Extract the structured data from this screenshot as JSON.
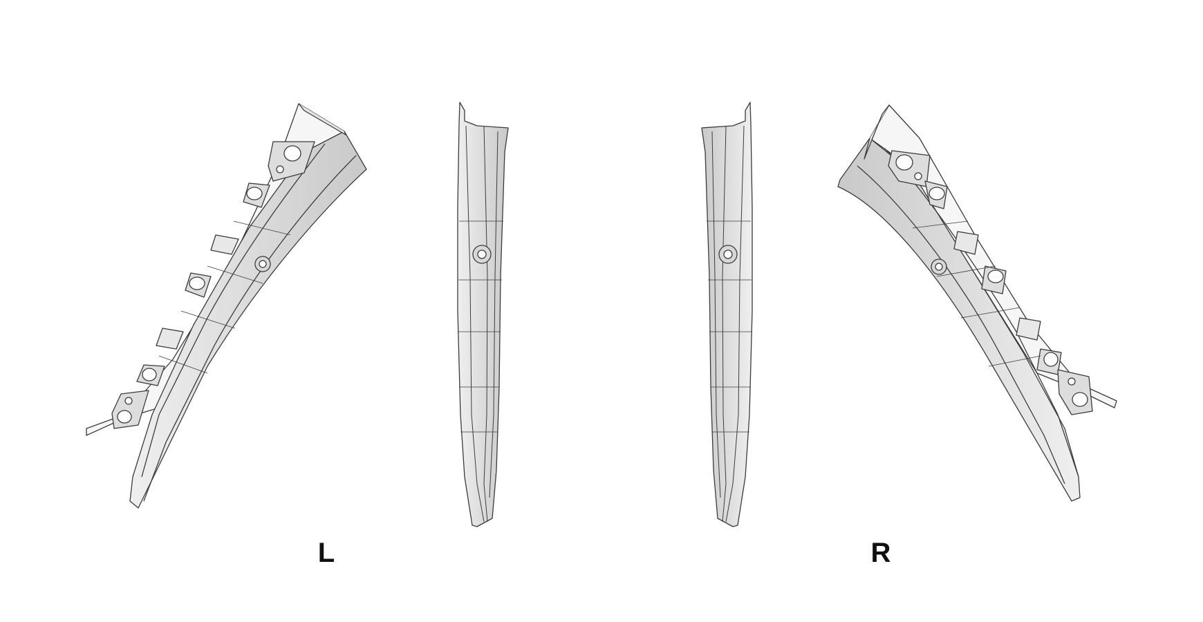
{
  "labels": {
    "left": "L",
    "right": "R"
  },
  "colors": {
    "background": "#ffffff",
    "part_face": "#f4f4f4",
    "part_shade": "#d2d2d2",
    "part_dark": "#bdbdbd",
    "outline": "#3a3a3a",
    "label": "#111111"
  }
}
